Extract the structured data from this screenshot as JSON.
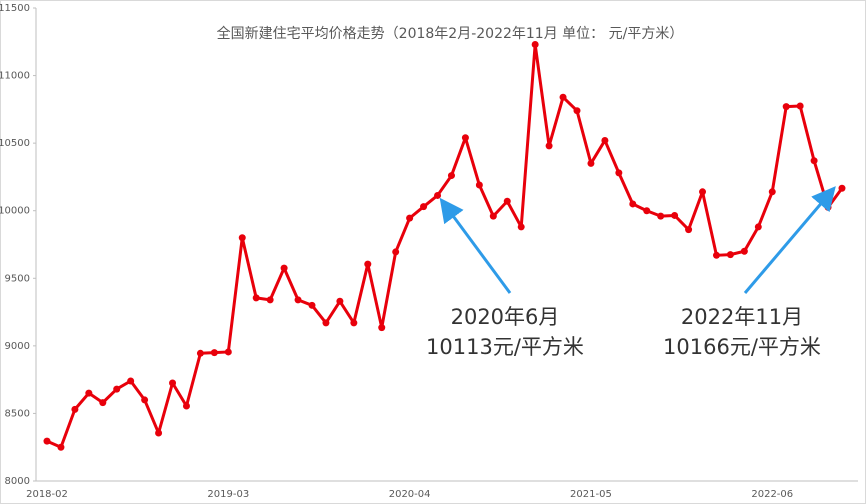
{
  "chart_data": {
    "type": "line",
    "title": "全国新建住宅平均价格走势（2018年2月-2022年11月   单位：  元/平方米）",
    "categories": [
      "2018-02",
      null,
      null,
      null,
      null,
      null,
      null,
      null,
      null,
      null,
      null,
      null,
      null,
      "2019-03",
      null,
      null,
      null,
      null,
      null,
      null,
      null,
      null,
      null,
      null,
      null,
      null,
      "2020-04",
      null,
      null,
      null,
      null,
      null,
      null,
      null,
      null,
      null,
      null,
      null,
      null,
      "2021-05",
      null,
      null,
      null,
      null,
      null,
      null,
      null,
      null,
      null,
      null,
      null,
      null,
      "2022-06",
      null,
      null,
      null,
      null,
      null
    ],
    "series": [
      {
        "name": "全国新建住宅平均价格",
        "color": "#e8000b",
        "values": [
          8295,
          8250,
          8530,
          8650,
          8580,
          8680,
          8740,
          8600,
          8355,
          8725,
          8555,
          8945,
          8950,
          8955,
          9800,
          9355,
          9340,
          9575,
          9340,
          9300,
          9170,
          9330,
          9170,
          9605,
          9135,
          9695,
          9945,
          10030,
          10113,
          10260,
          10540,
          10190,
          9960,
          10070,
          9880,
          11230,
          10480,
          10840,
          10740,
          10350,
          10520,
          10280,
          10050,
          10000,
          9960,
          9965,
          9860,
          10140,
          9670,
          9675,
          9700,
          9880,
          10140,
          10770,
          10775,
          10370,
          10025,
          10166
        ]
      }
    ],
    "ylim": [
      8000,
      11500
    ],
    "yticks": [
      8000,
      8500,
      9000,
      9500,
      10000,
      10500,
      11000,
      11500
    ],
    "grid": false,
    "annotations": [
      {
        "lines": [
          "2020年6月",
          "10113元/平方米"
        ]
      },
      {
        "lines": [
          "2022年11月",
          "10166元/平方米"
        ]
      }
    ]
  }
}
